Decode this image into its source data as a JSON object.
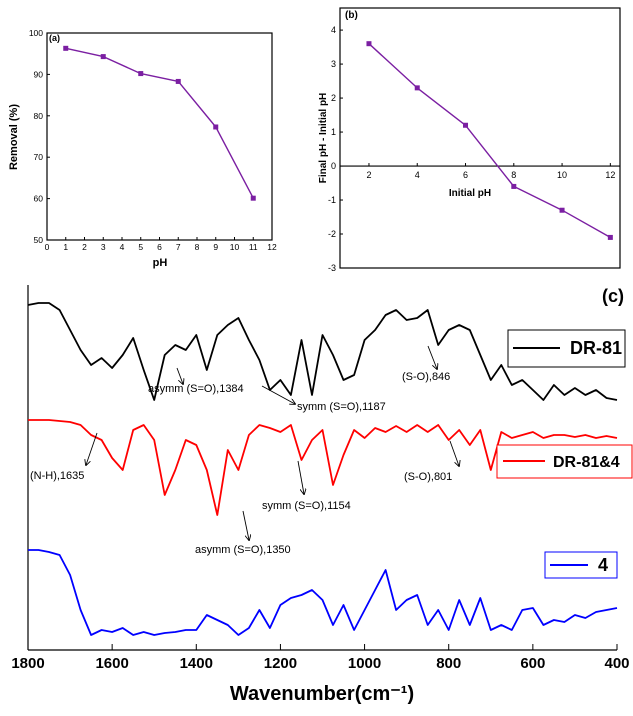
{
  "chart_data": [
    {
      "type": "line",
      "panel_label": "(a)",
      "x_label": "pH",
      "y_label": "Removal (%)",
      "x": [
        1,
        3,
        5,
        7,
        9,
        11
      ],
      "values": [
        96.3,
        94.3,
        90.2,
        88.3,
        77.3,
        60.1
      ],
      "color": "#7b1fa2",
      "marker": "square",
      "xlim": [
        0,
        12
      ],
      "xticks": [
        0,
        1,
        2,
        3,
        4,
        5,
        6,
        7,
        8,
        9,
        10,
        11,
        12
      ],
      "ylim": [
        50,
        100
      ],
      "yticks": [
        50,
        60,
        70,
        80,
        90,
        100
      ],
      "grid": false
    },
    {
      "type": "line",
      "panel_label": "(b)",
      "x_label": "Initial pH",
      "y_label": "Final pH - Initial pH",
      "x": [
        2,
        4,
        6,
        8,
        10,
        12
      ],
      "values": [
        3.6,
        2.3,
        1.2,
        -0.6,
        -1.3,
        -2.1
      ],
      "color": "#7b1fa2",
      "marker": "square",
      "xlim": [
        0.8,
        12.4
      ],
      "xticks": [
        2,
        4,
        6,
        8,
        10,
        12
      ],
      "ylim": [
        -3,
        4.65
      ],
      "yticks": [
        -3,
        -2,
        -1,
        0,
        1,
        2,
        3,
        4
      ],
      "x_axis_cross": 0,
      "grid": false
    },
    {
      "type": "line",
      "panel_label": "(c)",
      "x_label": "Wavenumber(cm⁻¹)",
      "x": [
        1800,
        1775,
        1750,
        1725,
        1700,
        1675,
        1650,
        1625,
        1600,
        1575,
        1550,
        1525,
        1500,
        1475,
        1450,
        1425,
        1400,
        1375,
        1350,
        1325,
        1300,
        1275,
        1250,
        1225,
        1200,
        1175,
        1150,
        1125,
        1100,
        1075,
        1050,
        1025,
        1000,
        975,
        950,
        925,
        900,
        875,
        850,
        825,
        800,
        775,
        750,
        725,
        700,
        675,
        650,
        625,
        600,
        575,
        550,
        525,
        500,
        475,
        450,
        425,
        400
      ],
      "series": [
        {
          "name": "DR-81",
          "color": "#000000",
          "values": [
            340,
            342,
            342,
            335,
            315,
            295,
            280,
            287,
            277,
            290,
            307,
            275,
            245,
            290,
            300,
            295,
            310,
            275,
            310,
            320,
            327,
            305,
            285,
            255,
            265,
            250,
            305,
            250,
            310,
            290,
            265,
            270,
            305,
            315,
            330,
            335,
            325,
            327,
            335,
            300,
            315,
            320,
            315,
            290,
            265,
            280,
            260,
            265,
            255,
            245,
            260,
            250,
            257,
            250,
            255,
            247,
            245
          ]
        },
        {
          "name": "DR-81&4",
          "color": "#ff0000",
          "values": [
            225,
            225,
            225,
            224,
            223,
            220,
            210,
            205,
            187,
            175,
            215,
            220,
            205,
            150,
            175,
            205,
            200,
            175,
            130,
            195,
            175,
            210,
            220,
            217,
            213,
            220,
            185,
            205,
            215,
            160,
            190,
            215,
            207,
            217,
            213,
            219,
            213,
            220,
            213,
            220,
            205,
            215,
            200,
            215,
            175,
            213,
            207,
            210,
            213,
            207,
            210,
            210,
            208,
            210,
            207,
            209,
            207
          ]
        },
        {
          "name": "4",
          "color": "#0000ff",
          "values": [
            95,
            95,
            93,
            90,
            70,
            35,
            10,
            15,
            13,
            17,
            10,
            13,
            10,
            12,
            13,
            15,
            15,
            30,
            25,
            20,
            10,
            17,
            35,
            17,
            40,
            47,
            50,
            55,
            45,
            20,
            40,
            15,
            35,
            55,
            75,
            35,
            45,
            50,
            20,
            35,
            15,
            45,
            20,
            47,
            15,
            20,
            15,
            35,
            37,
            20,
            25,
            23,
            30,
            27,
            33,
            35,
            37
          ]
        }
      ],
      "annotations": [
        "asymm (S=O),1384",
        "symm (S=O),1187",
        "(S-O),846",
        "(N-H),1635",
        "symm (S=O),1154",
        "(S-O),801",
        "asymm (S=O),1350"
      ],
      "xlim": [
        1800,
        400
      ],
      "xticks": [
        1800,
        1600,
        1400,
        1200,
        1000,
        800,
        600,
        400
      ],
      "ylim": [
        -5,
        355
      ],
      "grid": false
    }
  ]
}
